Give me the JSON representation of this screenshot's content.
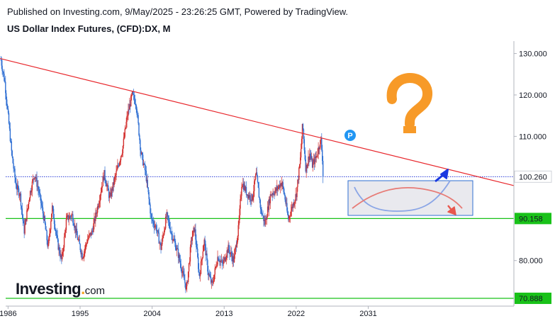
{
  "header": {
    "published": "Published on Investing.com, 9/May/2025 - 23:26:25 GMT, Powered by TradingView.",
    "symbol": "US Dollar Index Futures, (CFD):DX, M"
  },
  "logo": {
    "main": "Investing",
    "dot": ".",
    "suffix": "com"
  },
  "marker": {
    "label": "P"
  },
  "colors": {
    "candle_up": "#d3302f",
    "candle_down": "#2f6fd3",
    "trendline": "#e8262b",
    "horizontal": "#19c219",
    "current_price_line": "#2a3cd8",
    "projection_box_fill": "#e9e9ee",
    "projection_box_stroke": "#2f6fd3",
    "bull_path": "#8aa5e6",
    "bear_path": "#e77b76",
    "bull_arrow": "#1b39e0",
    "bear_arrow": "#e8574e",
    "question_mark": "#f79a28",
    "marker_fill": "#2196f3"
  },
  "chart_data": {
    "type": "candlestick",
    "title": "US Dollar Index Futures, (CFD):DX, M",
    "x_ticks": [
      "1986",
      "1995",
      "2004",
      "2013",
      "2022",
      "2031"
    ],
    "y_ticks": [
      "130.000",
      "120.000",
      "110.000",
      "80.000"
    ],
    "ylim": [
      69,
      133
    ],
    "xlim": [
      1985.7,
      2049.2
    ],
    "price_labels": [
      {
        "text": "100.260",
        "value": 100.26,
        "style": "current"
      },
      {
        "text": "90.158",
        "value": 90.158,
        "style": "level"
      },
      {
        "text": "70.888",
        "value": 70.888,
        "style": "level"
      }
    ],
    "horizontal_levels": [
      90.158,
      70.888
    ],
    "current_price": 100.26,
    "trendline": [
      {
        "x": 1985.0,
        "y": 128.8
      },
      {
        "x": 2049.2,
        "y": 98.1
      }
    ],
    "series": [
      {
        "values": [
          [
            1985.1,
            128.5
          ],
          [
            1985.6,
            123
          ],
          [
            1986.0,
            115
          ],
          [
            1986.5,
            105
          ],
          [
            1987.0,
            98
          ],
          [
            1987.5,
            96
          ],
          [
            1988.0,
            87
          ],
          [
            1988.7,
            96
          ],
          [
            1989.3,
            101
          ],
          [
            1989.8,
            97
          ],
          [
            1990.5,
            90
          ],
          [
            1991.0,
            83
          ],
          [
            1991.5,
            93
          ],
          [
            1992.2,
            84
          ],
          [
            1992.7,
            80
          ],
          [
            1993.3,
            90
          ],
          [
            1994.0,
            91
          ],
          [
            1994.6,
            86
          ],
          [
            1995.3,
            81
          ],
          [
            1995.9,
            85
          ],
          [
            1996.5,
            87
          ],
          [
            1997.3,
            94
          ],
          [
            1998.0,
            101
          ],
          [
            1998.7,
            95
          ],
          [
            1999.5,
            101
          ],
          [
            2000.3,
            107
          ],
          [
            2000.9,
            115
          ],
          [
            2001.5,
            120
          ],
          [
            2002.0,
            118
          ],
          [
            2002.6,
            106
          ],
          [
            2003.2,
            101
          ],
          [
            2003.9,
            90
          ],
          [
            2004.5,
            88
          ],
          [
            2005.1,
            83
          ],
          [
            2005.8,
            91
          ],
          [
            2006.5,
            86
          ],
          [
            2007.2,
            82
          ],
          [
            2007.8,
            77
          ],
          [
            2008.3,
            73
          ],
          [
            2008.9,
            85
          ],
          [
            2009.3,
            88
          ],
          [
            2009.9,
            76
          ],
          [
            2010.5,
            85
          ],
          [
            2011.0,
            77
          ],
          [
            2011.5,
            74
          ],
          [
            2012.2,
            81
          ],
          [
            2012.8,
            79
          ],
          [
            2013.5,
            83
          ],
          [
            2014.2,
            80
          ],
          [
            2014.8,
            88
          ],
          [
            2015.2,
            99
          ],
          [
            2015.9,
            96
          ],
          [
            2016.5,
            95
          ],
          [
            2017.0,
            101
          ],
          [
            2017.6,
            92
          ],
          [
            2018.1,
            89
          ],
          [
            2018.8,
            96
          ],
          [
            2019.5,
            97
          ],
          [
            2020.2,
            99
          ],
          [
            2020.6,
            95
          ],
          [
            2021.0,
            90
          ],
          [
            2021.5,
            93
          ],
          [
            2022.0,
            96
          ],
          [
            2022.5,
            104
          ],
          [
            2022.8,
            113
          ],
          [
            2023.2,
            102
          ],
          [
            2023.7,
            106
          ],
          [
            2024.0,
            103
          ],
          [
            2024.5,
            105
          ],
          [
            2024.9,
            108
          ],
          [
            2025.1,
            109
          ],
          [
            2025.3,
            104
          ],
          [
            2025.4,
            100.26
          ]
        ]
      }
    ]
  }
}
